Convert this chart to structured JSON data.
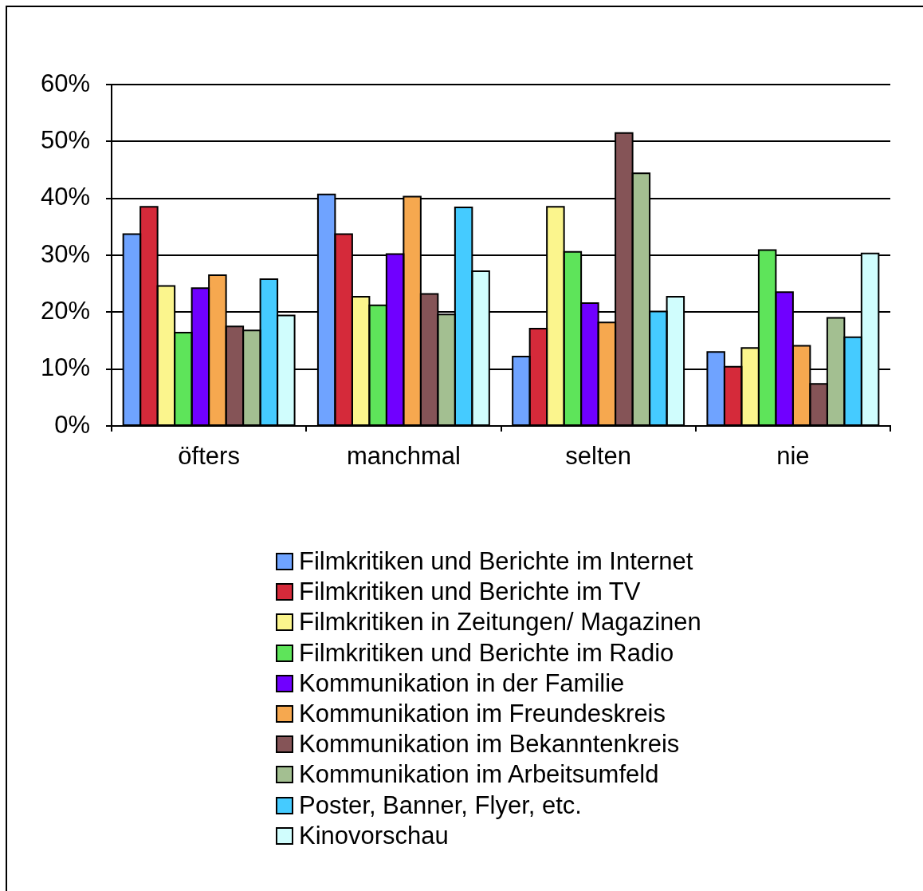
{
  "chart_data": {
    "type": "bar",
    "categories": [
      "öfters",
      "manchmal",
      "selten",
      "nie"
    ],
    "series": [
      {
        "name": "Filmkritiken und Berichte im Internet",
        "color": "#6fa3ff",
        "values": [
          33.7,
          40.7,
          12.2,
          13.0
        ]
      },
      {
        "name": "Filmkritiken und Berichte im TV",
        "color": "#d52a3a",
        "values": [
          38.5,
          33.7,
          17.1,
          10.4
        ]
      },
      {
        "name": "Filmkritiken in Zeitungen/ Magazinen",
        "color": "#fbf58d",
        "values": [
          24.6,
          22.7,
          38.5,
          13.7
        ]
      },
      {
        "name": "Filmkritiken und Berichte im Radio",
        "color": "#5ee45a",
        "values": [
          16.4,
          21.2,
          30.6,
          30.9
        ]
      },
      {
        "name": "Kommunikation in der Familie",
        "color": "#7000ff",
        "values": [
          24.2,
          30.2,
          21.6,
          23.5
        ]
      },
      {
        "name": "Kommunikation im Freundeskreis",
        "color": "#f6a84f",
        "values": [
          26.5,
          40.3,
          18.2,
          14.1
        ]
      },
      {
        "name": "Kommunikation im Bekanntenkreis",
        "color": "#855457",
        "values": [
          17.5,
          23.2,
          51.5,
          7.4
        ]
      },
      {
        "name": "Kommunikation im Arbeitsumfeld",
        "color": "#a3bf91",
        "values": [
          16.8,
          19.6,
          44.4,
          19.0
        ]
      },
      {
        "name": "Poster, Banner, Flyer, etc.",
        "color": "#45cbff",
        "values": [
          25.8,
          38.4,
          20.1,
          15.6
        ]
      },
      {
        "name": "Kinovorschau",
        "color": "#d0fdfd",
        "values": [
          19.4,
          27.2,
          22.7,
          30.3
        ]
      }
    ],
    "ylim": [
      0,
      60
    ],
    "yticks": [
      {
        "value": 0,
        "label": "0%"
      },
      {
        "value": 10,
        "label": "10%"
      },
      {
        "value": 20,
        "label": "20%"
      },
      {
        "value": 30,
        "label": "30%"
      },
      {
        "value": 40,
        "label": "40%"
      },
      {
        "value": 50,
        "label": "50%"
      },
      {
        "value": 60,
        "label": "60%"
      }
    ],
    "grid": "y",
    "legend": "bottom"
  }
}
